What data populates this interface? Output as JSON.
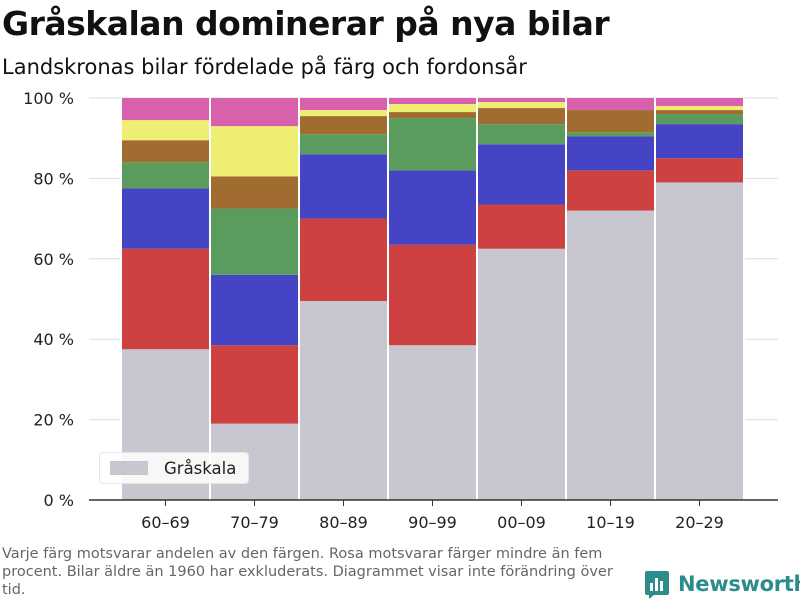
{
  "title": "Gråskalan dominerar på nya bilar",
  "subtitle": "Landskronas bilar fördelade på färg och fordonsår",
  "footnote": "Varje färg motsvarar andelen av den färgen. Rosa motsvarar färger mindre än fem procent. Bilar äldre än 1960 har exkluderats. Diagrammet visar inte förändring över tid.",
  "brand": {
    "name": "Newsworthy",
    "icon": "bar-chart-logo-icon",
    "color": "#2c8c8c"
  },
  "chart_data": {
    "type": "bar",
    "stacked": true,
    "normalized": "percent",
    "categories": [
      "60–69",
      "70–79",
      "80–89",
      "90–99",
      "00–09",
      "10–19",
      "20–29"
    ],
    "yticks": [
      0,
      20,
      40,
      60,
      80,
      100
    ],
    "ytick_labels": [
      "0 %",
      "20 %",
      "40 %",
      "60 %",
      "80 %",
      "100 %"
    ],
    "ylim": [
      0,
      100
    ],
    "grid": true,
    "legend": {
      "placement": "bottom-left",
      "entries": [
        "Gråskala"
      ]
    },
    "series": [
      {
        "name": "Gråskala",
        "color": "#c8c6ce",
        "values": [
          37.5,
          19,
          49.5,
          38.5,
          62.5,
          72,
          79
        ]
      },
      {
        "color": "#cd4141",
        "values": [
          25,
          19.5,
          20.5,
          25,
          11,
          10,
          6
        ]
      },
      {
        "color": "#4444c4",
        "values": [
          15,
          17.5,
          16,
          18.5,
          15,
          8.5,
          8.5
        ]
      },
      {
        "color": "#5a9c5e",
        "values": [
          6.5,
          16.5,
          5,
          13,
          5,
          1,
          2.5
        ]
      },
      {
        "color": "#a06c30",
        "values": [
          5.5,
          8,
          4.5,
          1.5,
          4,
          5.5,
          1
        ]
      },
      {
        "color": "#eeee73",
        "values": [
          5,
          12.5,
          1.5,
          2,
          1.5,
          0,
          1
        ]
      },
      {
        "color": "#d860ad",
        "values": [
          5.5,
          7,
          3,
          1.5,
          1,
          3,
          2
        ]
      }
    ]
  }
}
